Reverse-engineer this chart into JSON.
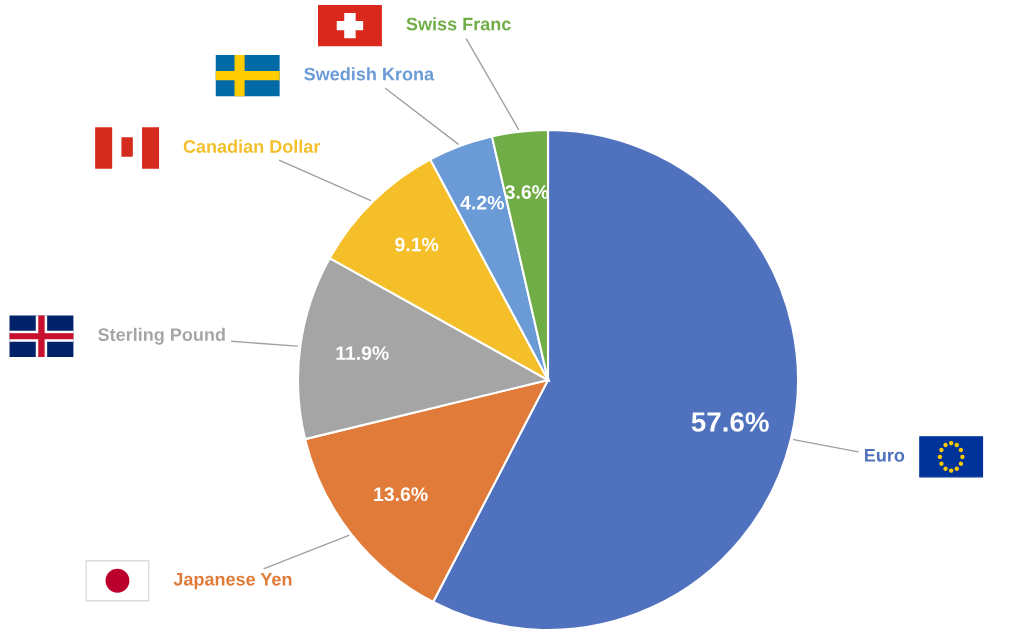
{
  "chart_data": {
    "type": "pie",
    "categories": [
      "Euro",
      "Japanese Yen",
      "Sterling Pound",
      "Canadian Dollar",
      "Swedish Krona",
      "Swiss Franc"
    ],
    "values": [
      57.6,
      13.6,
      11.9,
      9.1,
      4.2,
      3.6
    ],
    "colors": [
      "#4f71be",
      "#e07b39",
      "#a5a5a5",
      "#f5bf2a",
      "#6a9bd6",
      "#70ad47"
    ],
    "value_labels": [
      "57.6%",
      "13.6%",
      "11.9%",
      "9.1%",
      "4.2%",
      "3.6%"
    ]
  }
}
